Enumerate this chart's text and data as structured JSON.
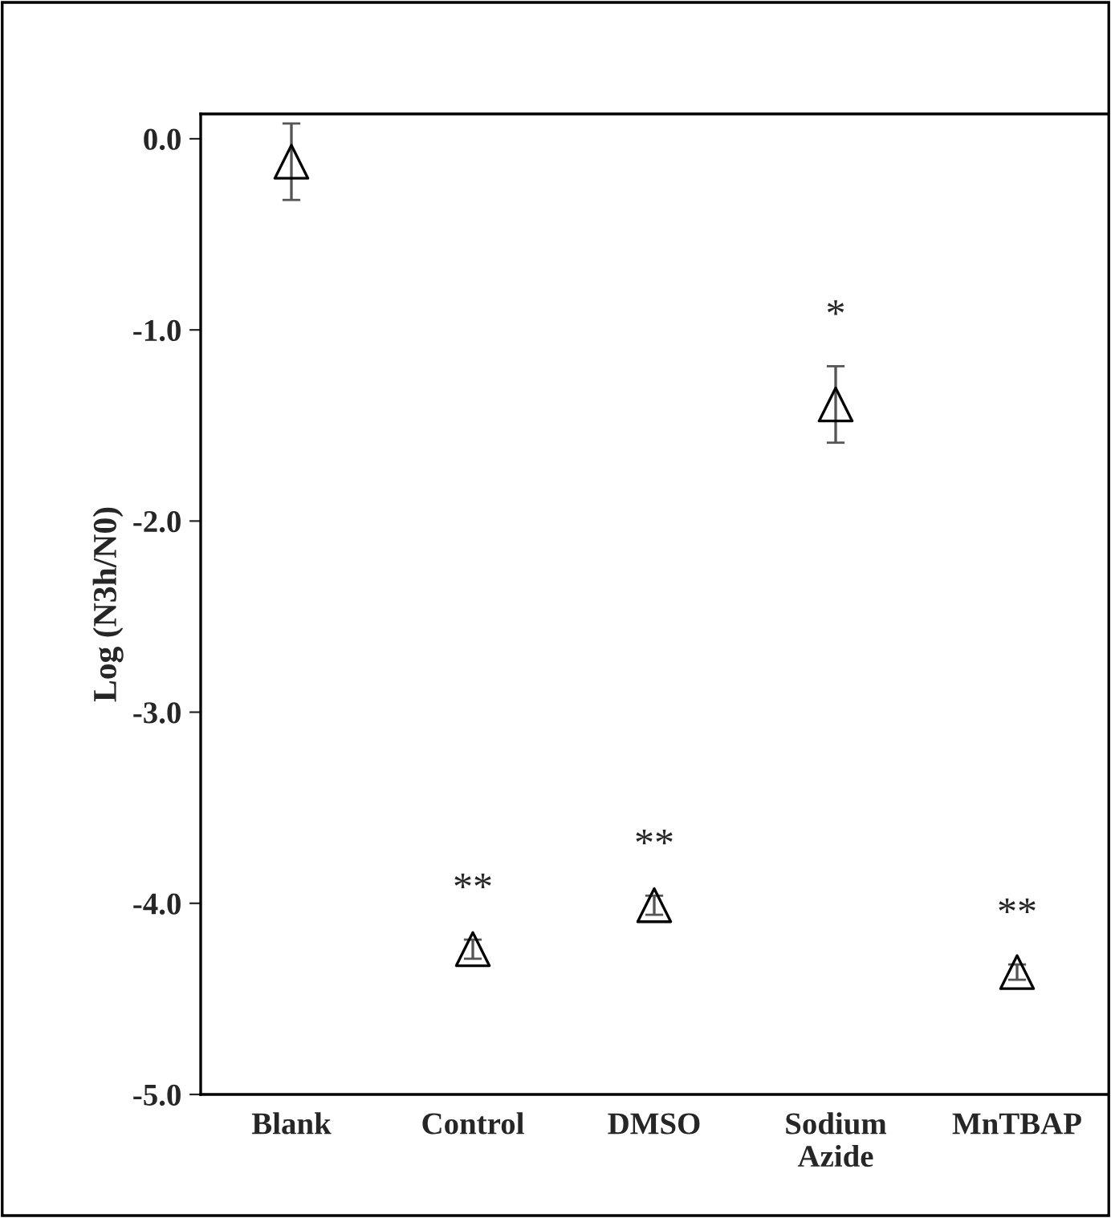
{
  "chart_data": {
    "type": "scatter",
    "ylabel": "Log (N3h/N0)",
    "categories": [
      "Blank",
      "Control",
      "DMSO",
      "Sodium\nAzide",
      "MnTBAP"
    ],
    "series": [
      {
        "color": "#000000",
        "values": [
          -0.12,
          -4.24,
          -4.01,
          -1.39,
          -4.36
        ],
        "errors": [
          0.2,
          0.05,
          0.05,
          0.2,
          0.04
        ]
      }
    ],
    "marker": "triangle",
    "ylim": [
      -5,
      0.13
    ],
    "yticks": [
      {
        "value": -5,
        "label": "-5.0"
      },
      {
        "value": -4,
        "label": "-4.0"
      },
      {
        "value": -3,
        "label": "-3.0"
      },
      {
        "value": -2,
        "label": "-2.0"
      },
      {
        "value": -1,
        "label": "-1.0"
      },
      {
        "value": 0,
        "label": "0.0"
      }
    ],
    "grid": false,
    "legend": false,
    "annotations": [
      "**",
      "**",
      "*",
      "**"
    ]
  }
}
